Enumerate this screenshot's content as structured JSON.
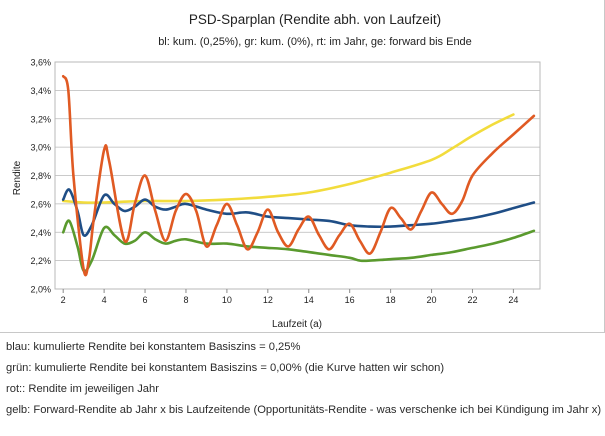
{
  "chart_data": {
    "type": "line",
    "title": "PSD-Sparplan (Rendite abh. von Laufzeit)",
    "subtitle": "bl: kum. (0,25%), gr: kum. (0%), rt: im Jahr, ge: forward bis Ende",
    "xlabel": "Laufzeit (a)",
    "ylabel": "Rendite",
    "xlim": [
      1.6,
      25.3
    ],
    "ylim": [
      2.0,
      3.6
    ],
    "xticks": [
      2,
      4,
      6,
      8,
      10,
      12,
      14,
      16,
      18,
      20,
      22,
      24
    ],
    "xtick_labels": [
      "2",
      "4",
      "6",
      "8",
      "10",
      "12",
      "14",
      "16",
      "18",
      "20",
      "22",
      "24"
    ],
    "yticks": [
      2.0,
      2.2,
      2.4,
      2.6,
      2.8,
      3.0,
      3.2,
      3.4,
      3.6
    ],
    "ytick_labels": [
      "2,0%",
      "2,2%",
      "2,4%",
      "2,6%",
      "2,8%",
      "3,0%",
      "3,2%",
      "3,4%",
      "3,6%"
    ],
    "grid": true,
    "series": [
      {
        "name": "gelb",
        "color": "#f2dc3c",
        "x": [
          2,
          3,
          4,
          6,
          8,
          10,
          12,
          14,
          16,
          18,
          20,
          21,
          22,
          23,
          24
        ],
        "values": [
          2.62,
          2.61,
          2.61,
          2.62,
          2.62,
          2.63,
          2.65,
          2.68,
          2.74,
          2.82,
          2.91,
          2.99,
          3.08,
          3.16,
          3.23
        ]
      },
      {
        "name": "blau",
        "color": "#1f4e86",
        "x": [
          2,
          2.3,
          2.7,
          3,
          3.4,
          4,
          4.5,
          5,
          5.5,
          6,
          6.5,
          7,
          7.5,
          8,
          9,
          10,
          11,
          12,
          13,
          14,
          15,
          16,
          17,
          18,
          19,
          20,
          21,
          22,
          23,
          24,
          25
        ],
        "values": [
          2.63,
          2.7,
          2.55,
          2.38,
          2.45,
          2.66,
          2.6,
          2.55,
          2.58,
          2.63,
          2.58,
          2.56,
          2.58,
          2.6,
          2.56,
          2.53,
          2.54,
          2.51,
          2.5,
          2.49,
          2.48,
          2.45,
          2.44,
          2.44,
          2.45,
          2.46,
          2.48,
          2.5,
          2.53,
          2.57,
          2.61
        ]
      },
      {
        "name": "grün",
        "color": "#5a9a2e",
        "x": [
          2,
          2.3,
          2.7,
          3,
          3.4,
          4,
          4.5,
          5,
          5.5,
          6,
          6.5,
          7,
          7.5,
          8,
          9,
          10,
          11,
          12,
          13,
          14,
          15,
          16,
          16.5,
          17,
          18,
          19,
          20,
          21,
          22,
          23,
          24,
          25
        ],
        "values": [
          2.4,
          2.48,
          2.3,
          2.13,
          2.2,
          2.43,
          2.38,
          2.32,
          2.34,
          2.4,
          2.35,
          2.32,
          2.34,
          2.35,
          2.32,
          2.32,
          2.3,
          2.29,
          2.28,
          2.26,
          2.24,
          2.22,
          2.2,
          2.2,
          2.21,
          2.22,
          2.24,
          2.26,
          2.29,
          2.32,
          2.36,
          2.41
        ]
      },
      {
        "name": "rot",
        "color": "#e05a23",
        "x": [
          2,
          2.25,
          2.5,
          3,
          3.25,
          3.5,
          4,
          4.25,
          5,
          5.5,
          6,
          6.5,
          7,
          7.5,
          8,
          8.5,
          9,
          9.5,
          10,
          10.5,
          11,
          11.5,
          12,
          12.5,
          13,
          13.5,
          14,
          14.5,
          15,
          15.5,
          16,
          16.5,
          17,
          17.5,
          18,
          18.5,
          19,
          19.5,
          20,
          20.5,
          21,
          21.5,
          22,
          23,
          24,
          25
        ],
        "values": [
          3.5,
          3.4,
          2.8,
          2.14,
          2.2,
          2.5,
          2.98,
          2.9,
          2.34,
          2.6,
          2.8,
          2.55,
          2.34,
          2.55,
          2.67,
          2.55,
          2.3,
          2.45,
          2.6,
          2.45,
          2.28,
          2.4,
          2.56,
          2.4,
          2.3,
          2.42,
          2.51,
          2.38,
          2.28,
          2.38,
          2.46,
          2.34,
          2.25,
          2.4,
          2.57,
          2.5,
          2.42,
          2.55,
          2.68,
          2.6,
          2.53,
          2.62,
          2.8,
          2.96,
          3.09,
          3.22
        ]
      }
    ]
  },
  "caption": {
    "lines": [
      "blau: kumulierte Rendite bei konstantem Basiszins = 0,25%",
      "grün: kumulierte Rendite bei konstantem Basiszins = 0,00% (die Kurve hatten wir schon)",
      "rot:: Rendite im jeweiligen Jahr",
      "gelb: Forward-Rendite ab Jahr x bis Laufzeitende (Opportunitäts-Rendite - was verschenke ich bei Kündigung im Jahr x)"
    ]
  }
}
